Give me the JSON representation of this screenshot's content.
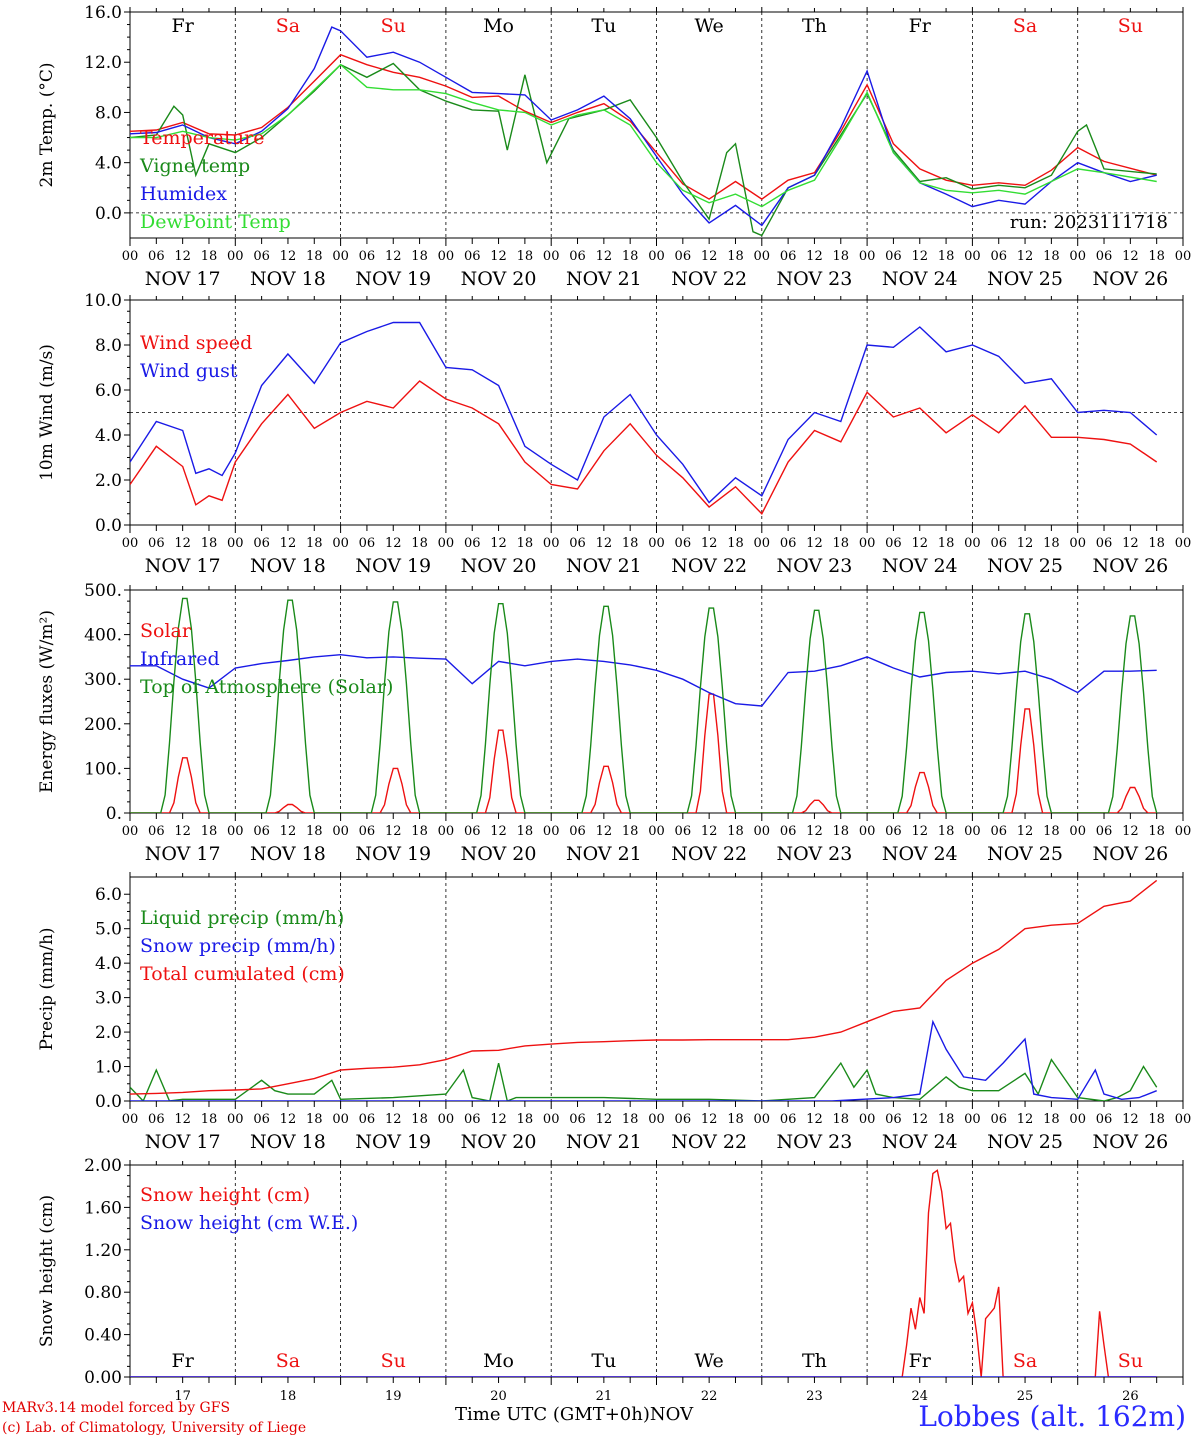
{
  "run_label": "run: 2023111718",
  "days": [
    "Fr",
    "Sa",
    "Su",
    "Mo",
    "Tu",
    "We",
    "Th",
    "Fr",
    "Sa",
    "Su"
  ],
  "weekend_days": [
    "Sa",
    "Su"
  ],
  "date_labels": [
    "NOV 17",
    "NOV 18",
    "NOV 19",
    "NOV 20",
    "NOV 21",
    "NOV 22",
    "NOV 23",
    "NOV 24",
    "NOV 25",
    "NOV 26"
  ],
  "hour_ticks": [
    "00",
    "06",
    "12",
    "18"
  ],
  "bottom_day_numbers": [
    "17",
    "18",
    "19",
    "20",
    "21",
    "22",
    "23",
    "24",
    "25",
    "26"
  ],
  "footer": {
    "credit_line1": "MARv3.14 model forced by GFS",
    "credit_line2": "(c) Lab. of Climatology, University of Liege",
    "x_axis_title": "Time UTC (GMT+0h)",
    "month": "NOV",
    "station": "Lobbes (alt. 162m)"
  },
  "colors": {
    "red": "#ee1111",
    "dark_green": "#1a8a1a",
    "blue": "#1a1ae6",
    "light_green": "#33dd33",
    "station_blue": "#2b2bff"
  },
  "chart_data": [
    {
      "type": "line",
      "ylabel": "2m Temp. (°C)",
      "ylim": [
        -2,
        16
      ],
      "yticks": [
        "0.0",
        "4.0",
        "8.0",
        "12.0",
        "16.0"
      ],
      "ref_line": 0,
      "x_unit": "hours since NOV 17 00 UTC",
      "series": [
        {
          "name": "Temperature",
          "color": "red",
          "x": [
            0,
            6,
            12,
            18,
            24,
            30,
            36,
            42,
            48,
            54,
            60,
            66,
            72,
            78,
            84,
            90,
            96,
            102,
            108,
            114,
            120,
            126,
            132,
            138,
            144,
            150,
            156,
            162,
            168,
            174,
            180,
            186,
            192,
            198,
            204,
            210,
            216,
            222,
            234
          ],
          "y": [
            6.5,
            6.6,
            7.2,
            6.3,
            6.2,
            6.8,
            8.4,
            10.5,
            12.6,
            11.8,
            11.2,
            10.8,
            10.1,
            9.2,
            9.3,
            8.1,
            7.2,
            8.0,
            8.7,
            7.3,
            4.8,
            2.3,
            1.1,
            2.5,
            1.1,
            2.6,
            3.2,
            6.5,
            10.2,
            5.5,
            3.5,
            2.6,
            2.2,
            2.4,
            2.2,
            3.4,
            5.2,
            4.1,
            3.0
          ]
        },
        {
          "name": "Vigne temp",
          "color": "dark_green",
          "x": [
            0,
            6,
            10,
            12,
            15,
            18,
            24,
            30,
            36,
            42,
            48,
            54,
            60,
            66,
            72,
            78,
            84,
            86,
            90,
            95,
            100,
            108,
            114,
            120,
            126,
            132,
            136,
            138,
            142,
            144,
            150,
            156,
            162,
            168,
            174,
            180,
            186,
            192,
            198,
            204,
            210,
            216,
            218,
            222,
            234
          ],
          "y": [
            6.0,
            6.2,
            8.5,
            7.8,
            3.0,
            5.5,
            4.8,
            6.0,
            7.8,
            9.7,
            11.8,
            10.8,
            11.9,
            9.8,
            8.9,
            8.2,
            8.1,
            5.0,
            11.0,
            4.0,
            7.5,
            8.2,
            9.0,
            6.0,
            2.5,
            -0.5,
            4.8,
            5.5,
            -1.5,
            -1.8,
            2.0,
            3.0,
            6.2,
            9.5,
            5.0,
            2.5,
            2.8,
            1.9,
            2.2,
            2.0,
            3.0,
            6.5,
            7.0,
            3.5,
            3.1
          ]
        },
        {
          "name": "Humidex",
          "color": "blue",
          "x": [
            0,
            6,
            12,
            18,
            24,
            30,
            36,
            42,
            46,
            48,
            54,
            60,
            66,
            72,
            78,
            84,
            90,
            96,
            102,
            108,
            114,
            120,
            126,
            132,
            138,
            144,
            148,
            150,
            156,
            162,
            168,
            174,
            180,
            186,
            192,
            198,
            204,
            210,
            216,
            222,
            228,
            234
          ],
          "y": [
            6.3,
            6.4,
            7.0,
            6.0,
            5.5,
            6.5,
            8.3,
            11.5,
            14.8,
            14.5,
            12.4,
            12.8,
            12.0,
            10.8,
            9.6,
            9.5,
            9.4,
            7.4,
            8.2,
            9.3,
            7.5,
            4.5,
            1.5,
            -0.8,
            0.6,
            -1.0,
            1.0,
            2.0,
            3.0,
            6.8,
            11.3,
            4.8,
            2.4,
            1.5,
            0.5,
            1.0,
            0.7,
            2.5,
            4.0,
            3.2,
            2.5,
            3.0
          ]
        },
        {
          "name": "DewPoint Temp",
          "color": "light_green",
          "x": [
            0,
            6,
            12,
            18,
            24,
            30,
            36,
            42,
            48,
            54,
            60,
            66,
            72,
            78,
            84,
            90,
            96,
            102,
            108,
            114,
            120,
            126,
            132,
            138,
            144,
            150,
            156,
            162,
            168,
            174,
            180,
            186,
            192,
            198,
            204,
            210,
            216,
            222,
            234
          ],
          "y": [
            6.0,
            6.0,
            6.5,
            6.0,
            5.8,
            6.3,
            7.8,
            9.8,
            11.8,
            10.0,
            9.8,
            9.8,
            9.5,
            8.8,
            8.2,
            8.0,
            7.0,
            7.8,
            8.2,
            7.0,
            4.0,
            1.8,
            0.8,
            1.5,
            0.5,
            1.8,
            2.6,
            6.0,
            9.6,
            4.8,
            2.4,
            1.8,
            1.6,
            1.8,
            1.5,
            2.5,
            3.5,
            3.2,
            2.5
          ]
        }
      ]
    },
    {
      "type": "line",
      "ylabel": "10m Wind (m/s)",
      "ylim": [
        0,
        10
      ],
      "yticks": [
        "0.0",
        "2.0",
        "4.0",
        "6.0",
        "8.0",
        "10.0"
      ],
      "ref_line": 5,
      "x_unit": "hours since NOV 17 00 UTC",
      "series": [
        {
          "name": "Wind speed",
          "color": "red",
          "x": [
            0,
            6,
            12,
            15,
            18,
            21,
            24,
            30,
            36,
            42,
            48,
            54,
            60,
            66,
            72,
            78,
            84,
            90,
            96,
            102,
            108,
            114,
            120,
            126,
            132,
            138,
            144,
            150,
            156,
            162,
            168,
            174,
            180,
            186,
            192,
            198,
            204,
            210,
            216,
            222,
            228,
            234
          ],
          "y": [
            1.8,
            3.5,
            2.6,
            0.9,
            1.3,
            1.1,
            2.8,
            4.5,
            5.8,
            4.3,
            5.0,
            5.5,
            5.2,
            6.4,
            5.6,
            5.2,
            4.5,
            2.8,
            1.8,
            1.6,
            3.3,
            4.5,
            3.1,
            2.1,
            0.8,
            1.7,
            0.5,
            2.8,
            4.2,
            3.7,
            5.9,
            4.8,
            5.2,
            4.1,
            4.9,
            4.1,
            5.3,
            3.9,
            3.9,
            3.8,
            3.6,
            2.8
          ]
        },
        {
          "name": "Wind gust",
          "color": "blue",
          "x": [
            0,
            6,
            12,
            15,
            18,
            21,
            24,
            30,
            36,
            42,
            48,
            54,
            60,
            66,
            72,
            78,
            84,
            90,
            96,
            102,
            108,
            114,
            120,
            126,
            132,
            138,
            144,
            150,
            156,
            162,
            168,
            174,
            180,
            186,
            192,
            198,
            204,
            210,
            216,
            222,
            228,
            234
          ],
          "y": [
            2.8,
            4.6,
            4.2,
            2.3,
            2.5,
            2.2,
            3.2,
            6.2,
            7.6,
            6.3,
            8.1,
            8.6,
            9.0,
            9.0,
            7.0,
            6.9,
            6.2,
            3.5,
            2.7,
            2.0,
            4.8,
            5.8,
            4.0,
            2.7,
            1.0,
            2.1,
            1.3,
            3.8,
            5.0,
            4.6,
            8.0,
            7.9,
            8.8,
            7.7,
            8.0,
            7.5,
            6.3,
            6.5,
            5.0,
            5.1,
            5.0,
            4.0
          ]
        }
      ]
    },
    {
      "type": "line",
      "ylabel": "Energy fluxes (W/m²)",
      "ylim": [
        0,
        500
      ],
      "yticks": [
        "0.",
        "100.",
        "200.",
        "300.",
        "400.",
        "500."
      ],
      "x_unit": "hours since NOV 17 00 UTC",
      "series": [
        {
          "name": "Solar",
          "color": "red",
          "peaks": [
            130,
            20,
            105,
            195,
            110,
            280,
            30,
            95,
            245,
            60
          ]
        },
        {
          "name": "Infrared",
          "color": "blue",
          "x": [
            0,
            6,
            12,
            18,
            24,
            30,
            36,
            42,
            48,
            54,
            60,
            66,
            72,
            78,
            84,
            90,
            96,
            102,
            108,
            114,
            120,
            126,
            132,
            138,
            144,
            150,
            156,
            162,
            168,
            174,
            180,
            186,
            192,
            198,
            204,
            210,
            216,
            222,
            228,
            234
          ],
          "y": [
            330,
            330,
            300,
            280,
            325,
            335,
            342,
            350,
            355,
            348,
            350,
            347,
            345,
            290,
            340,
            330,
            340,
            345,
            340,
            332,
            320,
            300,
            270,
            245,
            240,
            315,
            318,
            330,
            350,
            325,
            305,
            315,
            318,
            312,
            318,
            300,
            270,
            318,
            318,
            320
          ]
        },
        {
          "name": "Top of Atmosphere (Solar)",
          "color": "dark_green",
          "peaks": [
            490,
            486,
            482,
            478,
            472,
            468,
            463,
            458,
            455,
            450
          ]
        }
      ]
    },
    {
      "type": "line",
      "ylabel": "Precip (mm/h)",
      "ylim": [
        0,
        6.5
      ],
      "yticks": [
        "0.0",
        "1.0",
        "2.0",
        "3.0",
        "4.0",
        "5.0",
        "6.0"
      ],
      "x_unit": "hours since NOV 17 00 UTC",
      "series": [
        {
          "name": "Liquid precip (mm/h)",
          "color": "dark_green",
          "x": [
            0,
            3,
            6,
            9,
            12,
            24,
            30,
            33,
            36,
            42,
            46,
            48,
            60,
            72,
            76,
            78,
            82,
            84,
            86,
            88,
            96,
            108,
            120,
            132,
            144,
            156,
            162,
            165,
            168,
            170,
            174,
            180,
            186,
            189,
            192,
            198,
            204,
            207,
            210,
            216,
            222,
            225,
            228,
            231,
            234
          ],
          "y": [
            0.4,
            0.0,
            0.9,
            0.0,
            0.05,
            0.05,
            0.6,
            0.3,
            0.2,
            0.2,
            0.6,
            0.05,
            0.1,
            0.2,
            0.9,
            0.1,
            0.0,
            1.1,
            0.0,
            0.1,
            0.1,
            0.1,
            0.05,
            0.05,
            0.0,
            0.1,
            1.1,
            0.4,
            0.9,
            0.2,
            0.1,
            0.05,
            0.7,
            0.4,
            0.3,
            0.3,
            0.8,
            0.2,
            1.2,
            0.1,
            0.0,
            0.1,
            0.3,
            1.0,
            0.4
          ]
        },
        {
          "name": "Snow precip (mm/h)",
          "color": "blue",
          "x": [
            0,
            160,
            174,
            180,
            183,
            186,
            190,
            195,
            199,
            204,
            206,
            210,
            216,
            220,
            222,
            226,
            230,
            234
          ],
          "y": [
            0,
            0,
            0.1,
            0.2,
            2.3,
            1.5,
            0.7,
            0.6,
            1.1,
            1.8,
            0.2,
            0.1,
            0.05,
            0.9,
            0.2,
            0.05,
            0.1,
            0.3
          ]
        },
        {
          "name": "Total cumulated (cm)",
          "color": "red",
          "x": [
            0,
            6,
            12,
            18,
            24,
            30,
            36,
            42,
            48,
            54,
            60,
            66,
            72,
            78,
            84,
            90,
            96,
            102,
            108,
            114,
            120,
            126,
            132,
            138,
            144,
            150,
            156,
            162,
            168,
            174,
            180,
            186,
            192,
            198,
            204,
            210,
            216,
            222,
            228,
            234
          ],
          "y": [
            0.2,
            0.22,
            0.25,
            0.3,
            0.32,
            0.35,
            0.5,
            0.65,
            0.9,
            0.95,
            0.98,
            1.05,
            1.2,
            1.45,
            1.47,
            1.6,
            1.65,
            1.7,
            1.72,
            1.75,
            1.77,
            1.77,
            1.78,
            1.78,
            1.78,
            1.78,
            1.85,
            2.0,
            2.3,
            2.6,
            2.7,
            3.5,
            4.0,
            4.4,
            5.0,
            5.1,
            5.15,
            5.65,
            5.8,
            6.4
          ]
        }
      ]
    },
    {
      "type": "line",
      "ylabel": "Snow height (cm)",
      "ylim": [
        0,
        2
      ],
      "yticks": [
        "0.00",
        "0.40",
        "0.80",
        "1.20",
        "1.60",
        "2.00"
      ],
      "x_unit": "hours since NOV 17 00 UTC",
      "series": [
        {
          "name": "Snow height (cm)",
          "color": "red",
          "x": [
            0,
            176,
            177,
            178,
            179,
            180,
            181,
            182,
            183,
            184,
            185,
            186,
            187,
            188,
            189,
            190,
            191,
            192,
            193,
            194,
            195,
            196,
            197,
            198,
            199,
            200,
            201,
            202,
            203,
            204,
            205,
            206,
            207,
            208,
            209,
            210,
            211,
            212,
            213,
            214,
            215,
            216,
            217,
            218,
            219,
            220,
            221,
            222,
            223,
            224,
            225,
            234
          ],
          "y": [
            0,
            0,
            0.3,
            0.65,
            0.45,
            0.75,
            0.6,
            1.55,
            1.92,
            1.95,
            1.75,
            1.4,
            1.45,
            1.1,
            0.9,
            0.95,
            0.6,
            0.7,
            0.4,
            0,
            0.55,
            0.6,
            0.65,
            0.85,
            0,
            0,
            0,
            0,
            0,
            0,
            0,
            0,
            0,
            0,
            0,
            0,
            0,
            0,
            0,
            0,
            0,
            0,
            0,
            0,
            0,
            0,
            0.62,
            0.3,
            0,
            0,
            0,
            0
          ]
        },
        {
          "name": "Snow height (cm W.E.)",
          "color": "blue",
          "x": [
            0,
            234
          ],
          "y": [
            0,
            0
          ]
        }
      ]
    }
  ]
}
